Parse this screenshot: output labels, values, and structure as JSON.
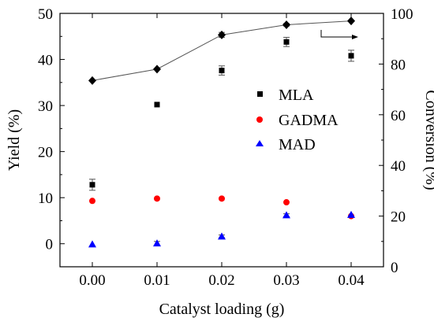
{
  "chart_data": {
    "type": "scatter",
    "xlabel": "Catalyst loading (g)",
    "ylabel_left": "Yield (%)",
    "ylabel_right": "Conversion (%)",
    "x": [
      0.0,
      0.01,
      0.02,
      0.03,
      0.04
    ],
    "x_tick_labels": [
      "0.00",
      "0.01",
      "0.02",
      "0.03",
      "0.04"
    ],
    "xlim": [
      -0.005,
      0.045
    ],
    "ylim_left": [
      -5,
      50
    ],
    "yticks_left": [
      0,
      10,
      20,
      30,
      40,
      50
    ],
    "ylim_right": [
      0,
      100
    ],
    "yticks_right": [
      0,
      20,
      40,
      60,
      80,
      100
    ],
    "series": [
      {
        "name": "MLA",
        "axis": "left",
        "marker": "square",
        "color": "#000000",
        "values": [
          12.8,
          30.2,
          37.6,
          43.8,
          40.8
        ],
        "errors": [
          1.2,
          0,
          1.0,
          1.0,
          1.2
        ]
      },
      {
        "name": "GADMA",
        "axis": "left",
        "marker": "circle",
        "color": "#ff0000",
        "values": [
          9.3,
          9.8,
          9.8,
          9.0,
          6.0
        ],
        "errors": [
          0,
          0,
          0,
          0,
          0
        ]
      },
      {
        "name": "MAD",
        "axis": "left",
        "marker": "triangle",
        "color": "#0000ff",
        "values": [
          -0.1,
          0.1,
          1.6,
          6.2,
          6.3
        ],
        "errors": [
          0,
          0.4,
          0.3,
          0.3,
          0
        ]
      },
      {
        "axis": "right",
        "marker": "diamond",
        "color": "#000000",
        "line": true,
        "values": [
          73.5,
          78.0,
          91.5,
          95.5,
          97.0
        ],
        "errors": [
          0,
          0,
          1.0,
          0.5,
          0
        ]
      }
    ],
    "legend": {
      "position": "center-right",
      "entries": [
        "MLA",
        "GADMA",
        "MAD"
      ]
    },
    "annotation": "arrow from conversion series pointing to right axis",
    "grid": false
  }
}
